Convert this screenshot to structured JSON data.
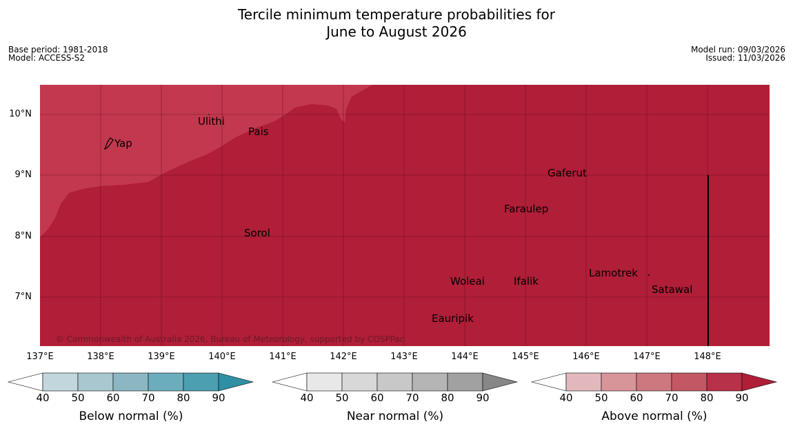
{
  "title": {
    "line1": "Tercile minimum temperature probabilities for",
    "line2": "June to August 2026"
  },
  "meta": {
    "base_period": "Base period: 1981-2018",
    "model": "Model: ACCESS-S2",
    "model_run": "Model run: 09/03/2026",
    "issued": "Issued: 11/03/2026"
  },
  "map": {
    "colors": {
      "above_80_90": "#b01e38",
      "above_70_80": "#c2384e",
      "grid": "#5a0d18",
      "boundary": "#000000"
    },
    "lat_labels": [
      "10°N",
      "9°N",
      "8°N",
      "7°N"
    ],
    "lon_labels": [
      "137°E",
      "138°E",
      "139°E",
      "140°E",
      "141°E",
      "142°E",
      "143°E",
      "144°E",
      "145°E",
      "146°E",
      "147°E",
      "148°E"
    ],
    "places": {
      "yap": "Yap",
      "ulithi": "Ulithi",
      "pais": "Pais",
      "gaferut": "Gaferut",
      "faraulep": "Faraulep",
      "sorol": "Sorol",
      "lamotrek": "Lamotrek",
      "woleai": "Woleai",
      "ifalik": "Ifalik",
      "satawal": "Satawal",
      "eauripik": "Eauripik"
    },
    "copyright": "© Commonwealth of Australia 2026, Bureau of Meteorology, supported by COSPPac"
  },
  "colorbars": {
    "ticks": [
      "40",
      "50",
      "60",
      "70",
      "80",
      "90"
    ],
    "below": {
      "title": "Below normal (%)",
      "colors": [
        "#ffffff",
        "#c1d6dd",
        "#a8c7cf",
        "#8bb7c3",
        "#6badbc",
        "#4b9fb0",
        "#2f90a4"
      ]
    },
    "near": {
      "title": "Near normal (%)",
      "colors": [
        "#ffffff",
        "#e8e8e8",
        "#d8d8d8",
        "#c8c8c8",
        "#b5b5b5",
        "#a1a1a1",
        "#878787"
      ]
    },
    "above": {
      "title": "Above normal (%)",
      "colors": [
        "#ffffff",
        "#e2b8bd",
        "#d79599",
        "#cd787f",
        "#c35864",
        "#b73148",
        "#b01e38"
      ]
    }
  }
}
